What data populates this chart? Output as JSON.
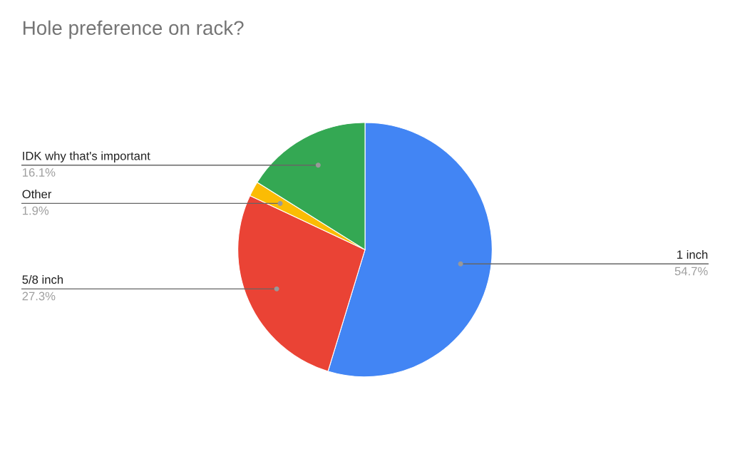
{
  "chart_data": {
    "type": "pie",
    "title": "Hole preference on rack?",
    "categories": [
      "1 inch",
      "5/8 inch",
      "Other",
      "IDK why that's important"
    ],
    "values": [
      54.7,
      27.3,
      1.9,
      16.1
    ],
    "colors": [
      "#4285f4",
      "#ea4335",
      "#fbbc04",
      "#34a853"
    ],
    "value_labels": [
      "54.7%",
      "27.3%",
      "1.9%",
      "16.1%"
    ],
    "legend": false
  }
}
